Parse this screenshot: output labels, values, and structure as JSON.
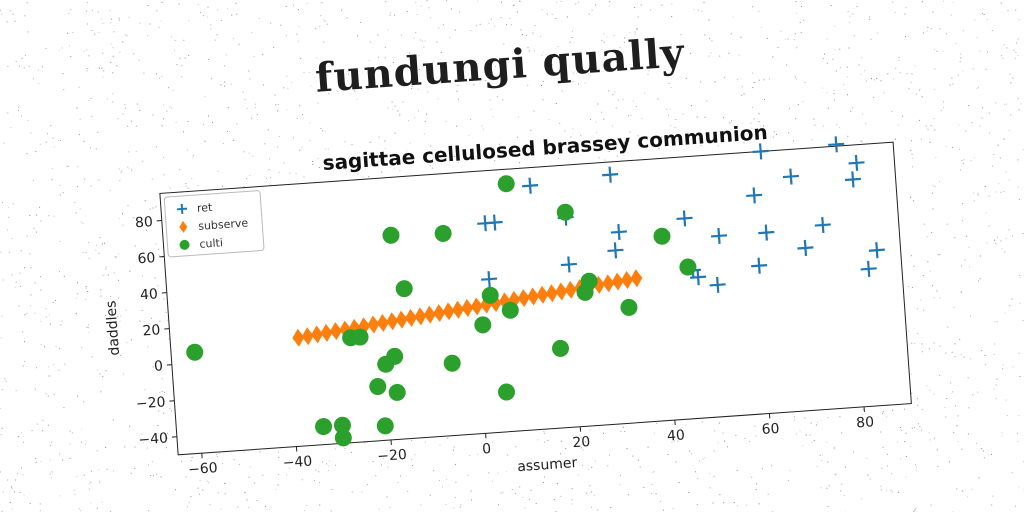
{
  "main_title": "fundungi qually",
  "chart_data": {
    "type": "scatter",
    "title": "sagittae cellulosed brassey communion",
    "xlabel": "assumer",
    "ylabel": "daddles",
    "xlim": [
      -65,
      90
    ],
    "ylim": [
      -50,
      95
    ],
    "xticks": [
      -60,
      -40,
      -20,
      0,
      20,
      40,
      60,
      80
    ],
    "yticks": [
      -40,
      -20,
      0,
      20,
      40,
      60,
      80
    ],
    "grid": false,
    "legend_position": "top-left",
    "series": [
      {
        "name": "ret",
        "marker": "plus",
        "color": "#1f77b4",
        "points": [
          [
            62,
            95
          ],
          [
            78,
            96
          ],
          [
            13,
            85
          ],
          [
            30,
            88
          ],
          [
            68,
            80
          ],
          [
            82,
            85
          ],
          [
            81,
            76
          ],
          [
            60,
            71
          ],
          [
            3,
            66
          ],
          [
            5,
            66
          ],
          [
            20,
            66
          ],
          [
            31,
            56
          ],
          [
            45,
            61
          ],
          [
            52,
            50
          ],
          [
            62,
            50
          ],
          [
            74,
            52
          ],
          [
            30,
            46
          ],
          [
            20,
            40
          ],
          [
            3,
            35
          ],
          [
            46,
            32
          ],
          [
            70,
            40
          ],
          [
            85,
            36
          ],
          [
            60,
            32
          ],
          [
            47,
            28
          ],
          [
            51,
            23
          ],
          [
            83,
            26
          ]
        ]
      },
      {
        "name": "subserve",
        "marker": "diamond",
        "color": "#ff7f0e",
        "points": [
          [
            -38,
            10
          ],
          [
            -36,
            10.5
          ],
          [
            -34,
            11.1
          ],
          [
            -32,
            11.6
          ],
          [
            -30,
            12.2
          ],
          [
            -28,
            12.7
          ],
          [
            -26,
            13.3
          ],
          [
            -24,
            13.8
          ],
          [
            -22,
            14.4
          ],
          [
            -20,
            14.9
          ],
          [
            -18,
            15.5
          ],
          [
            -16,
            16
          ],
          [
            -14,
            16.6
          ],
          [
            -12,
            17.1
          ],
          [
            -10,
            17.7
          ],
          [
            -8,
            18.2
          ],
          [
            -6,
            18.8
          ],
          [
            -4,
            19.3
          ],
          [
            -2,
            19.9
          ],
          [
            0,
            20.4
          ],
          [
            2,
            21
          ],
          [
            4,
            21.5
          ],
          [
            6,
            22.1
          ],
          [
            8,
            22.6
          ],
          [
            10,
            23.2
          ],
          [
            12,
            23.7
          ],
          [
            14,
            24.3
          ],
          [
            16,
            24.8
          ],
          [
            18,
            25.4
          ],
          [
            20,
            25.9
          ],
          [
            22,
            26.5
          ],
          [
            24,
            27
          ],
          [
            26,
            27.6
          ],
          [
            28,
            28.1
          ],
          [
            30,
            28.7
          ],
          [
            32,
            29.2
          ],
          [
            34,
            29.8
          ]
        ]
      },
      {
        "name": "culti",
        "marker": "circle",
        "color": "#2ca02c",
        "points": [
          [
            -60,
            6
          ],
          [
            -34,
            -40
          ],
          [
            -30,
            -40
          ],
          [
            -30,
            -47
          ],
          [
            -21,
            -42
          ],
          [
            -27,
            8
          ],
          [
            -25,
            8
          ],
          [
            -20,
            -8
          ],
          [
            -18,
            -4
          ],
          [
            -22,
            -20
          ],
          [
            -18,
            -24
          ],
          [
            -17,
            63
          ],
          [
            -15,
            33
          ],
          [
            -6,
            62
          ],
          [
            -6,
            -10
          ],
          [
            1,
            10
          ],
          [
            3,
            26
          ],
          [
            7,
            17
          ],
          [
            5,
            -28
          ],
          [
            8,
            87
          ],
          [
            20,
            69
          ],
          [
            17,
            -6
          ],
          [
            23,
            24
          ],
          [
            24,
            30
          ],
          [
            32,
            14
          ],
          [
            40,
            52
          ],
          [
            45,
            34
          ]
        ]
      }
    ]
  }
}
